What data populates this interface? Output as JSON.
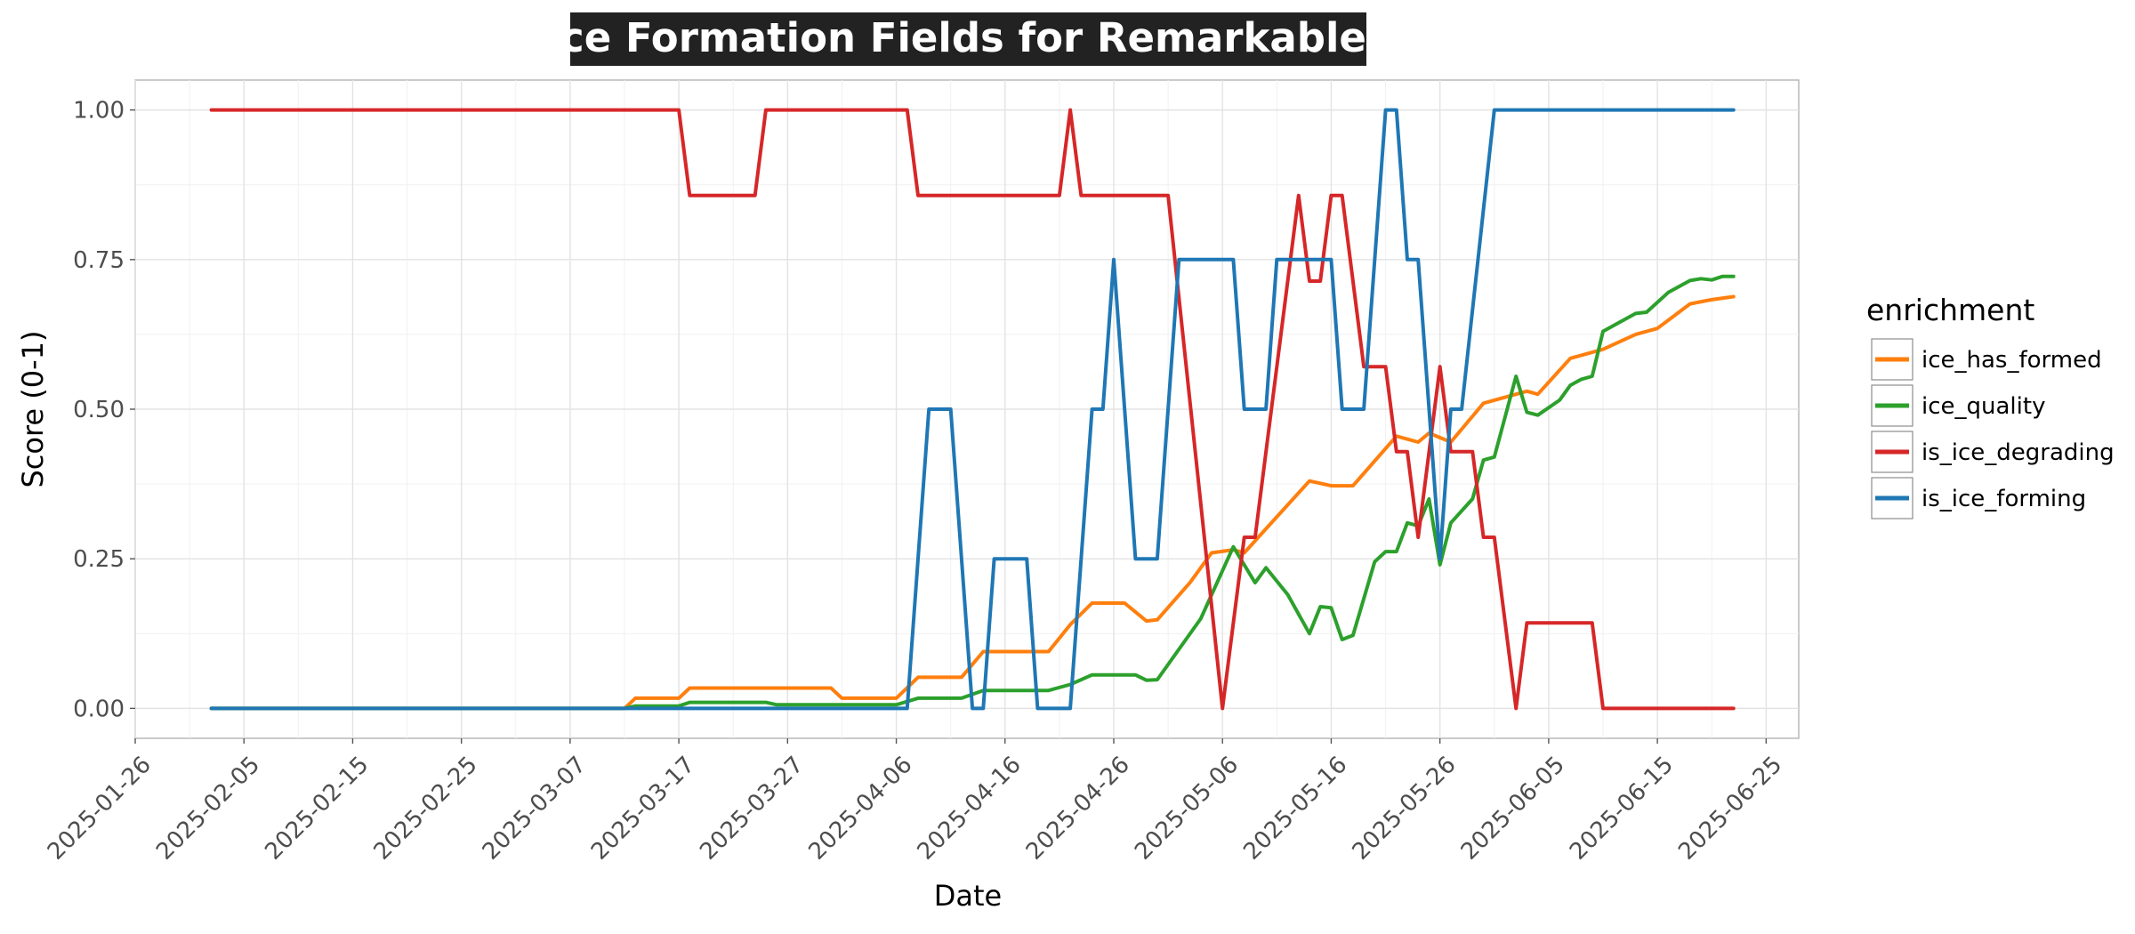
{
  "chart_data": {
    "type": "line",
    "title": "Ice Formation Fields for Remarkables",
    "xlabel": "Date",
    "ylabel": "Score (0-1)",
    "xlim": [
      "2025-01-26",
      "2025-06-28"
    ],
    "ylim": [
      -0.05,
      1.05
    ],
    "x_ticks": [
      "2025-01-26",
      "2025-02-05",
      "2025-02-15",
      "2025-02-25",
      "2025-03-07",
      "2025-03-17",
      "2025-03-27",
      "2025-04-06",
      "2025-04-16",
      "2025-04-26",
      "2025-05-06",
      "2025-05-16",
      "2025-05-26",
      "2025-06-05",
      "2025-06-15",
      "2025-06-25"
    ],
    "y_ticks": [
      "0.00",
      "0.25",
      "0.50",
      "0.75",
      "1.00"
    ],
    "grid": true,
    "legend": {
      "title": "enrichment",
      "placement": "right"
    },
    "series": [
      {
        "name": "ice_has_formed",
        "color": "#ff7f0e",
        "points": [
          [
            "2025-02-02",
            0
          ],
          [
            "2025-03-12",
            0
          ],
          [
            "2025-03-13",
            0.017
          ],
          [
            "2025-03-17",
            0.017
          ],
          [
            "2025-03-18",
            0.034
          ],
          [
            "2025-03-31",
            0.034
          ],
          [
            "2025-04-01",
            0.017
          ],
          [
            "2025-04-06",
            0.017
          ],
          [
            "2025-04-08",
            0.052
          ],
          [
            "2025-04-12",
            0.052
          ],
          [
            "2025-04-14",
            0.095
          ],
          [
            "2025-04-20",
            0.095
          ],
          [
            "2025-04-22",
            0.14
          ],
          [
            "2025-04-24",
            0.176
          ],
          [
            "2025-04-27",
            0.176
          ],
          [
            "2025-04-29",
            0.146
          ],
          [
            "2025-04-30",
            0.148
          ],
          [
            "2025-05-03",
            0.21
          ],
          [
            "2025-05-05",
            0.26
          ],
          [
            "2025-05-07",
            0.265
          ],
          [
            "2025-05-08",
            0.26
          ],
          [
            "2025-05-10",
            0.3
          ],
          [
            "2025-05-14",
            0.38
          ],
          [
            "2025-05-16",
            0.372
          ],
          [
            "2025-05-18",
            0.372
          ],
          [
            "2025-05-22",
            0.455
          ],
          [
            "2025-05-24",
            0.445
          ],
          [
            "2025-05-25",
            0.46
          ],
          [
            "2025-05-27",
            0.445
          ],
          [
            "2025-05-30",
            0.51
          ],
          [
            "2025-06-03",
            0.53
          ],
          [
            "2025-06-04",
            0.525
          ],
          [
            "2025-06-07",
            0.585
          ],
          [
            "2025-06-10",
            0.6
          ],
          [
            "2025-06-13",
            0.625
          ],
          [
            "2025-06-15",
            0.635
          ],
          [
            "2025-06-18",
            0.676
          ],
          [
            "2025-06-20",
            0.683
          ],
          [
            "2025-06-22",
            0.688
          ]
        ]
      },
      {
        "name": "ice_quality",
        "color": "#2ca02c",
        "points": [
          [
            "2025-02-02",
            0
          ],
          [
            "2025-03-12",
            0
          ],
          [
            "2025-03-13",
            0.004
          ],
          [
            "2025-03-17",
            0.004
          ],
          [
            "2025-03-18",
            0.01
          ],
          [
            "2025-03-25",
            0.01
          ],
          [
            "2025-03-26",
            0.006
          ],
          [
            "2025-04-06",
            0.006
          ],
          [
            "2025-04-08",
            0.017
          ],
          [
            "2025-04-12",
            0.017
          ],
          [
            "2025-04-14",
            0.03
          ],
          [
            "2025-04-20",
            0.03
          ],
          [
            "2025-04-22",
            0.04
          ],
          [
            "2025-04-24",
            0.056
          ],
          [
            "2025-04-28",
            0.056
          ],
          [
            "2025-04-29",
            0.047
          ],
          [
            "2025-04-30",
            0.048
          ],
          [
            "2025-05-04",
            0.15
          ],
          [
            "2025-05-07",
            0.27
          ],
          [
            "2025-05-09",
            0.21
          ],
          [
            "2025-05-10",
            0.235
          ],
          [
            "2025-05-12",
            0.19
          ],
          [
            "2025-05-14",
            0.125
          ],
          [
            "2025-05-15",
            0.17
          ],
          [
            "2025-05-16",
            0.168
          ],
          [
            "2025-05-17",
            0.115
          ],
          [
            "2025-05-18",
            0.122
          ],
          [
            "2025-05-20",
            0.245
          ],
          [
            "2025-05-21",
            0.262
          ],
          [
            "2025-05-22",
            0.262
          ],
          [
            "2025-05-23",
            0.31
          ],
          [
            "2025-05-24",
            0.305
          ],
          [
            "2025-05-25",
            0.35
          ],
          [
            "2025-05-26",
            0.24
          ],
          [
            "2025-05-27",
            0.31
          ],
          [
            "2025-05-29",
            0.35
          ],
          [
            "2025-05-30",
            0.415
          ],
          [
            "2025-05-31",
            0.42
          ],
          [
            "2025-06-02",
            0.555
          ],
          [
            "2025-06-03",
            0.495
          ],
          [
            "2025-06-04",
            0.49
          ],
          [
            "2025-06-06",
            0.515
          ],
          [
            "2025-06-07",
            0.54
          ],
          [
            "2025-06-08",
            0.55
          ],
          [
            "2025-06-09",
            0.555
          ],
          [
            "2025-06-10",
            0.63
          ],
          [
            "2025-06-13",
            0.66
          ],
          [
            "2025-06-14",
            0.662
          ],
          [
            "2025-06-16",
            0.695
          ],
          [
            "2025-06-18",
            0.715
          ],
          [
            "2025-06-19",
            0.718
          ],
          [
            "2025-06-20",
            0.716
          ],
          [
            "2025-06-21",
            0.722
          ],
          [
            "2025-06-22",
            0.722
          ]
        ]
      },
      {
        "name": "is_ice_degrading",
        "color": "#d62728",
        "points": [
          [
            "2025-02-02",
            1
          ],
          [
            "2025-03-17",
            1
          ],
          [
            "2025-03-18",
            0.857
          ],
          [
            "2025-03-24",
            0.857
          ],
          [
            "2025-03-25",
            1
          ],
          [
            "2025-04-07",
            1
          ],
          [
            "2025-04-08",
            0.857
          ],
          [
            "2025-04-21",
            0.857
          ],
          [
            "2025-04-22",
            1
          ],
          [
            "2025-04-23",
            0.857
          ],
          [
            "2025-05-01",
            0.857
          ],
          [
            "2025-05-06",
            0
          ],
          [
            "2025-05-08",
            0.286
          ],
          [
            "2025-05-09",
            0.286
          ],
          [
            "2025-05-13",
            0.857
          ],
          [
            "2025-05-14",
            0.714
          ],
          [
            "2025-05-15",
            0.714
          ],
          [
            "2025-05-16",
            0.857
          ],
          [
            "2025-05-17",
            0.857
          ],
          [
            "2025-05-19",
            0.571
          ],
          [
            "2025-05-21",
            0.571
          ],
          [
            "2025-05-22",
            0.429
          ],
          [
            "2025-05-23",
            0.429
          ],
          [
            "2025-05-24",
            0.286
          ],
          [
            "2025-05-26",
            0.571
          ],
          [
            "2025-05-27",
            0.429
          ],
          [
            "2025-05-29",
            0.429
          ],
          [
            "2025-05-30",
            0.286
          ],
          [
            "2025-05-31",
            0.286
          ],
          [
            "2025-06-02",
            0
          ],
          [
            "2025-06-03",
            0.143
          ],
          [
            "2025-06-09",
            0.143
          ],
          [
            "2025-06-10",
            0
          ],
          [
            "2025-06-22",
            0
          ]
        ]
      },
      {
        "name": "is_ice_forming",
        "color": "#1f77b4",
        "points": [
          [
            "2025-02-02",
            0
          ],
          [
            "2025-04-07",
            0
          ],
          [
            "2025-04-09",
            0.5
          ],
          [
            "2025-04-11",
            0.5
          ],
          [
            "2025-04-13",
            0
          ],
          [
            "2025-04-14",
            0
          ],
          [
            "2025-04-15",
            0.25
          ],
          [
            "2025-04-18",
            0.25
          ],
          [
            "2025-04-19",
            0
          ],
          [
            "2025-04-22",
            0
          ],
          [
            "2025-04-24",
            0.5
          ],
          [
            "2025-04-25",
            0.5
          ],
          [
            "2025-04-26",
            0.75
          ],
          [
            "2025-04-28",
            0.25
          ],
          [
            "2025-04-30",
            0.25
          ],
          [
            "2025-05-02",
            0.75
          ],
          [
            "2025-05-07",
            0.75
          ],
          [
            "2025-05-08",
            0.5
          ],
          [
            "2025-05-10",
            0.5
          ],
          [
            "2025-05-11",
            0.75
          ],
          [
            "2025-05-16",
            0.75
          ],
          [
            "2025-05-17",
            0.5
          ],
          [
            "2025-05-19",
            0.5
          ],
          [
            "2025-05-21",
            1
          ],
          [
            "2025-05-22",
            1
          ],
          [
            "2025-05-23",
            0.75
          ],
          [
            "2025-05-24",
            0.75
          ],
          [
            "2025-05-26",
            0.25
          ],
          [
            "2025-05-27",
            0.5
          ],
          [
            "2025-05-28",
            0.5
          ],
          [
            "2025-05-31",
            1
          ],
          [
            "2025-06-22",
            1
          ]
        ]
      }
    ]
  }
}
